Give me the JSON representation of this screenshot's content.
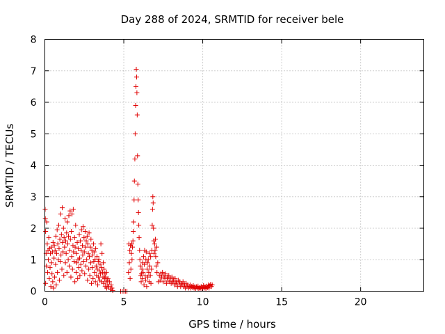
{
  "chart_data": {
    "type": "scatter",
    "title": "Day 288 of 2024, SRMTID for receiver bele",
    "xlabel": "GPS time / hours",
    "ylabel": "SRMTID / TECUs",
    "xlim": [
      0,
      24
    ],
    "ylim": [
      0,
      8
    ],
    "xticks": [
      0,
      5,
      10,
      15,
      20
    ],
    "yticks": [
      0,
      1,
      2,
      3,
      4,
      5,
      6,
      7,
      8
    ],
    "xtick_labels": [
      "0",
      "5",
      "10",
      "15",
      "20"
    ],
    "ytick_labels": [
      "0",
      "1",
      "2",
      "3",
      "4",
      "5",
      "6",
      "7",
      "8"
    ],
    "grid": true,
    "marker": "+",
    "color": "#e00000",
    "series": [
      {
        "name": "SRMTID",
        "points": [
          [
            0.02,
            2.6
          ],
          [
            0.03,
            2.3
          ],
          [
            0.05,
            1.9
          ],
          [
            0.05,
            0.25
          ],
          [
            0.08,
            1.2
          ],
          [
            0.1,
            0.8
          ],
          [
            0.12,
            2.2
          ],
          [
            0.15,
            1.5
          ],
          [
            0.18,
            0.6
          ],
          [
            0.2,
            1.3
          ],
          [
            0.22,
            1.0
          ],
          [
            0.25,
            1.7
          ],
          [
            0.28,
            0.4
          ],
          [
            0.3,
            1.35
          ],
          [
            0.33,
            0.75
          ],
          [
            0.35,
            1.2
          ],
          [
            0.38,
            0.15
          ],
          [
            0.4,
            1.4
          ],
          [
            0.42,
            0.9
          ],
          [
            0.45,
            0.55
          ],
          [
            0.48,
            1.25
          ],
          [
            0.5,
            0.3
          ],
          [
            0.52,
            1.55
          ],
          [
            0.55,
            0.1
          ],
          [
            0.58,
            1.05
          ],
          [
            0.6,
            1.45
          ],
          [
            0.62,
            0.45
          ],
          [
            0.65,
            1.3
          ],
          [
            0.68,
            0.85
          ],
          [
            0.7,
            1.75
          ],
          [
            0.72,
            0.2
          ],
          [
            0.75,
            1.2
          ],
          [
            0.78,
            1.95
          ],
          [
            0.8,
            0.6
          ],
          [
            0.82,
            1.5
          ],
          [
            0.85,
            1.0
          ],
          [
            0.88,
            2.1
          ],
          [
            0.9,
            1.35
          ],
          [
            0.92,
            0.35
          ],
          [
            0.95,
            1.65
          ],
          [
            0.98,
            0.95
          ],
          [
            1.0,
            2.45
          ],
          [
            1.02,
            1.15
          ],
          [
            1.05,
            1.8
          ],
          [
            1.08,
            0.7
          ],
          [
            1.1,
            2.65
          ],
          [
            1.12,
            1.55
          ],
          [
            1.15,
            1.25
          ],
          [
            1.18,
            2.0
          ],
          [
            1.2,
            0.5
          ],
          [
            1.22,
            1.7
          ],
          [
            1.25,
            1.4
          ],
          [
            1.28,
            2.3
          ],
          [
            1.3,
            0.9
          ],
          [
            1.32,
            1.6
          ],
          [
            1.35,
            1.2
          ],
          [
            1.38,
            1.85
          ],
          [
            1.4,
            0.6
          ],
          [
            1.42,
            2.2
          ],
          [
            1.45,
            1.5
          ],
          [
            1.48,
            1.0
          ],
          [
            1.5,
            1.75
          ],
          [
            1.52,
            2.4
          ],
          [
            1.55,
            0.8
          ],
          [
            1.58,
            1.3
          ],
          [
            1.6,
            2.55
          ],
          [
            1.62,
            1.65
          ],
          [
            1.65,
            0.45
          ],
          [
            1.68,
            1.9
          ],
          [
            1.7,
            1.1
          ],
          [
            1.72,
            2.45
          ],
          [
            1.75,
            0.7
          ],
          [
            1.78,
            1.45
          ],
          [
            1.8,
            2.6
          ],
          [
            1.82,
            1.25
          ],
          [
            1.85,
            0.95
          ],
          [
            1.88,
            1.7
          ],
          [
            1.9,
            0.3
          ],
          [
            1.92,
            1.4
          ],
          [
            1.95,
            2.1
          ],
          [
            1.98,
            0.6
          ],
          [
            2.0,
            1.2
          ],
          [
            2.02,
            0.9
          ],
          [
            2.05,
            1.55
          ],
          [
            2.08,
            0.4
          ],
          [
            2.1,
            1.0
          ],
          [
            2.12,
            1.35
          ],
          [
            2.15,
            0.75
          ],
          [
            2.18,
            1.8
          ],
          [
            2.2,
            1.05
          ],
          [
            2.22,
            0.5
          ],
          [
            2.25,
            1.6
          ],
          [
            2.28,
            0.85
          ],
          [
            2.3,
            1.3
          ],
          [
            2.32,
            1.95
          ],
          [
            2.35,
            0.65
          ],
          [
            2.38,
            1.45
          ],
          [
            2.4,
            1.15
          ],
          [
            2.42,
            2.05
          ],
          [
            2.45,
            0.95
          ],
          [
            2.48,
            1.7
          ],
          [
            2.5,
            1.25
          ],
          [
            2.52,
            0.55
          ],
          [
            2.55,
            1.9
          ],
          [
            2.58,
            1.4
          ],
          [
            2.6,
            0.8
          ],
          [
            2.62,
            1.6
          ],
          [
            2.65,
            1.0
          ],
          [
            2.68,
            1.75
          ],
          [
            2.7,
            0.35
          ],
          [
            2.72,
            1.5
          ],
          [
            2.75,
            1.2
          ],
          [
            2.78,
            0.7
          ],
          [
            2.8,
            1.85
          ],
          [
            2.82,
            1.1
          ],
          [
            2.85,
            0.5
          ],
          [
            2.88,
            1.4
          ],
          [
            2.9,
            0.9
          ],
          [
            2.92,
            1.65
          ],
          [
            2.95,
            0.25
          ],
          [
            2.98,
            1.3
          ],
          [
            3.0,
            0.75
          ],
          [
            3.02,
            1.15
          ],
          [
            3.05,
            0.4
          ],
          [
            3.08,
            1.5
          ],
          [
            3.1,
            0.95
          ],
          [
            3.12,
            1.25
          ],
          [
            3.15,
            0.6
          ],
          [
            3.18,
            1.0
          ],
          [
            3.2,
            0.3
          ],
          [
            3.22,
            1.35
          ],
          [
            3.25,
            0.8
          ],
          [
            3.28,
            0.5
          ],
          [
            3.3,
            1.1
          ],
          [
            3.32,
            0.7
          ],
          [
            3.35,
            0.2
          ],
          [
            3.38,
            0.95
          ],
          [
            3.4,
            0.45
          ],
          [
            3.42,
            1.0
          ],
          [
            3.45,
            0.65
          ],
          [
            3.48,
            0.35
          ],
          [
            3.5,
            0.85
          ],
          [
            3.52,
            0.55
          ],
          [
            3.55,
            1.5
          ],
          [
            3.58,
            0.75
          ],
          [
            3.6,
            0.3
          ],
          [
            3.62,
            1.2
          ],
          [
            3.65,
            0.6
          ],
          [
            3.68,
            0.45
          ],
          [
            3.7,
            0.9
          ],
          [
            3.72,
            0.25
          ],
          [
            3.75,
            0.7
          ],
          [
            3.78,
            0.4
          ],
          [
            3.8,
            0.55
          ],
          [
            3.82,
            0.15
          ],
          [
            3.85,
            0.45
          ],
          [
            3.88,
            0.3
          ],
          [
            3.9,
            0.6
          ],
          [
            3.92,
            0.1
          ],
          [
            3.95,
            0.35
          ],
          [
            3.98,
            0.2
          ],
          [
            4.0,
            0.4
          ],
          [
            4.05,
            0.15
          ],
          [
            4.1,
            0.3
          ],
          [
            4.15,
            0.05
          ],
          [
            4.2,
            0.2
          ],
          [
            4.25,
            0.1
          ],
          [
            4.3,
            0.02
          ],
          [
            4.8,
            0.0
          ],
          [
            4.9,
            0.0
          ],
          [
            5.0,
            0.0
          ],
          [
            5.1,
            0.0
          ],
          [
            5.2,
            0.0
          ],
          [
            5.3,
            0.6
          ],
          [
            5.32,
            1.5
          ],
          [
            5.35,
            0.9
          ],
          [
            5.38,
            1.3
          ],
          [
            5.4,
            0.4
          ],
          [
            5.42,
            1.45
          ],
          [
            5.45,
            0.7
          ],
          [
            5.48,
            1.2
          ],
          [
            5.5,
            1.5
          ],
          [
            5.52,
            1.0
          ],
          [
            5.55,
            1.4
          ],
          [
            5.58,
            1.6
          ],
          [
            5.6,
            1.9
          ],
          [
            5.62,
            2.2
          ],
          [
            5.65,
            2.9
          ],
          [
            5.67,
            3.5
          ],
          [
            5.7,
            4.2
          ],
          [
            5.72,
            5.0
          ],
          [
            5.75,
            5.9
          ],
          [
            5.77,
            6.5
          ],
          [
            5.79,
            7.05
          ],
          [
            5.81,
            6.8
          ],
          [
            5.83,
            6.3
          ],
          [
            5.85,
            5.6
          ],
          [
            5.87,
            4.3
          ],
          [
            5.89,
            3.4
          ],
          [
            5.91,
            2.9
          ],
          [
            5.93,
            2.5
          ],
          [
            5.95,
            2.1
          ],
          [
            5.97,
            1.7
          ],
          [
            6.0,
            1.3
          ],
          [
            6.02,
            1.0
          ],
          [
            6.05,
            0.8
          ],
          [
            6.08,
            0.5
          ],
          [
            6.1,
            0.3
          ],
          [
            6.12,
            0.55
          ],
          [
            6.15,
            0.7
          ],
          [
            6.18,
            0.4
          ],
          [
            6.2,
            0.9
          ],
          [
            6.22,
            0.6
          ],
          [
            6.25,
            1.1
          ],
          [
            6.28,
            0.2
          ],
          [
            6.3,
            0.85
          ],
          [
            6.32,
            1.3
          ],
          [
            6.35,
            0.5
          ],
          [
            6.38,
            0.35
          ],
          [
            6.4,
            1.0
          ],
          [
            6.42,
            1.25
          ],
          [
            6.45,
            0.15
          ],
          [
            6.48,
            0.7
          ],
          [
            6.5,
            0.9
          ],
          [
            6.52,
            0.45
          ],
          [
            6.55,
            1.0
          ],
          [
            6.58,
            0.6
          ],
          [
            6.6,
            0.3
          ],
          [
            6.62,
            1.2
          ],
          [
            6.65,
            0.8
          ],
          [
            6.68,
            0.5
          ],
          [
            6.7,
            1.1
          ],
          [
            6.72,
            0.25
          ],
          [
            6.75,
            0.7
          ],
          [
            6.78,
            1.3
          ],
          [
            6.8,
            2.1
          ],
          [
            6.82,
            2.6
          ],
          [
            6.84,
            3.0
          ],
          [
            6.86,
            2.8
          ],
          [
            6.88,
            2.0
          ],
          [
            6.9,
            1.6
          ],
          [
            6.92,
            1.2
          ],
          [
            6.95,
            1.5
          ],
          [
            6.98,
            1.3
          ],
          [
            7.0,
            1.65
          ],
          [
            7.02,
            1.1
          ],
          [
            7.05,
            0.8
          ],
          [
            7.08,
            1.4
          ],
          [
            7.1,
            0.6
          ],
          [
            7.15,
            0.9
          ],
          [
            7.2,
            0.3
          ],
          [
            7.25,
            0.5
          ],
          [
            7.3,
            0.35
          ],
          [
            7.35,
            0.55
          ],
          [
            7.4,
            0.45
          ],
          [
            7.45,
            0.6
          ],
          [
            7.5,
            0.3
          ],
          [
            7.55,
            0.5
          ],
          [
            7.6,
            0.4
          ],
          [
            7.65,
            0.55
          ],
          [
            7.7,
            0.25
          ],
          [
            7.75,
            0.45
          ],
          [
            7.8,
            0.35
          ],
          [
            7.85,
            0.5
          ],
          [
            7.9,
            0.3
          ],
          [
            7.95,
            0.4
          ],
          [
            8.0,
            0.25
          ],
          [
            8.05,
            0.45
          ],
          [
            8.1,
            0.3
          ],
          [
            8.15,
            0.35
          ],
          [
            8.2,
            0.2
          ],
          [
            8.25,
            0.4
          ],
          [
            8.3,
            0.25
          ],
          [
            8.35,
            0.3
          ],
          [
            8.4,
            0.15
          ],
          [
            8.45,
            0.35
          ],
          [
            8.5,
            0.2
          ],
          [
            8.55,
            0.3
          ],
          [
            8.6,
            0.15
          ],
          [
            8.65,
            0.25
          ],
          [
            8.7,
            0.2
          ],
          [
            8.75,
            0.3
          ],
          [
            8.8,
            0.15
          ],
          [
            8.85,
            0.2
          ],
          [
            8.9,
            0.1
          ],
          [
            8.95,
            0.25
          ],
          [
            9.0,
            0.15
          ],
          [
            9.05,
            0.2
          ],
          [
            9.1,
            0.1
          ],
          [
            9.15,
            0.15
          ],
          [
            9.2,
            0.2
          ],
          [
            9.25,
            0.1
          ],
          [
            9.3,
            0.15
          ],
          [
            9.35,
            0.12
          ],
          [
            9.4,
            0.18
          ],
          [
            9.45,
            0.1
          ],
          [
            9.5,
            0.15
          ],
          [
            9.55,
            0.08
          ],
          [
            9.6,
            0.14
          ],
          [
            9.65,
            0.1
          ],
          [
            9.7,
            0.16
          ],
          [
            9.75,
            0.08
          ],
          [
            9.8,
            0.12
          ],
          [
            9.85,
            0.1
          ],
          [
            9.9,
            0.15
          ],
          [
            9.95,
            0.08
          ],
          [
            10.0,
            0.12
          ],
          [
            10.05,
            0.18
          ],
          [
            10.1,
            0.1
          ],
          [
            10.15,
            0.14
          ],
          [
            10.2,
            0.08
          ],
          [
            10.25,
            0.16
          ],
          [
            10.3,
            0.12
          ],
          [
            10.35,
            0.2
          ],
          [
            10.4,
            0.1
          ],
          [
            10.45,
            0.18
          ],
          [
            10.5,
            0.22
          ],
          [
            10.55,
            0.15
          ],
          [
            10.6,
            0.2
          ]
        ]
      }
    ]
  }
}
